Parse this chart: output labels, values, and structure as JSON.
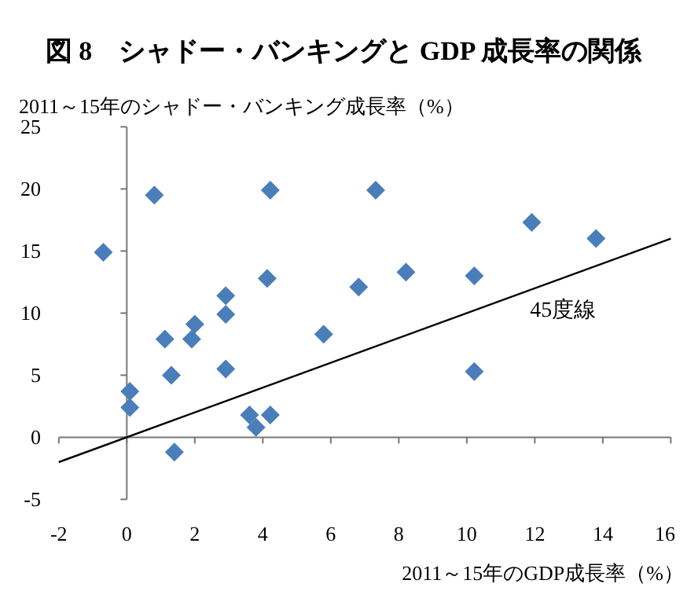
{
  "chart_data": {
    "type": "scatter",
    "title": "図 8　シャドー・バンキングと GDP 成長率の関係",
    "ylabel": "2011～15年のシャドー・バンキング成長率（%）",
    "xlabel": "2011～15年のGDP成長率（%）",
    "xlim": [
      -2,
      16
    ],
    "xticks": [
      -2,
      0,
      2,
      4,
      6,
      8,
      10,
      12,
      14,
      16
    ],
    "ylim": [
      -5,
      25
    ],
    "yticks": [
      -5,
      0,
      5,
      10,
      15,
      20,
      25
    ],
    "marker": "diamond",
    "series": [
      {
        "color": "#4a7ebb",
        "x": [
          -0.69,
          0.81,
          4.22,
          7.32,
          11.91,
          13.8,
          4.13,
          6.82,
          8.21,
          10.22,
          2.91,
          2.91,
          2.0,
          1.12,
          1.91,
          5.79,
          1.31,
          2.91,
          10.22,
          0.09,
          0.09,
          3.61,
          4.22,
          3.8,
          1.4
        ],
        "values": [
          14.9,
          19.5,
          19.9,
          19.9,
          17.3,
          16.0,
          12.8,
          12.1,
          13.3,
          13.0,
          11.4,
          9.9,
          9.1,
          7.9,
          7.9,
          8.3,
          5.0,
          5.5,
          5.3,
          3.7,
          2.4,
          1.8,
          1.8,
          0.8,
          -1.2
        ]
      },
      {
        "type": "line",
        "color": "#000000",
        "marker": "none",
        "x": [
          -2,
          16
        ],
        "values": [
          -2,
          16
        ]
      }
    ],
    "annotations": [
      "45度線"
    ]
  }
}
